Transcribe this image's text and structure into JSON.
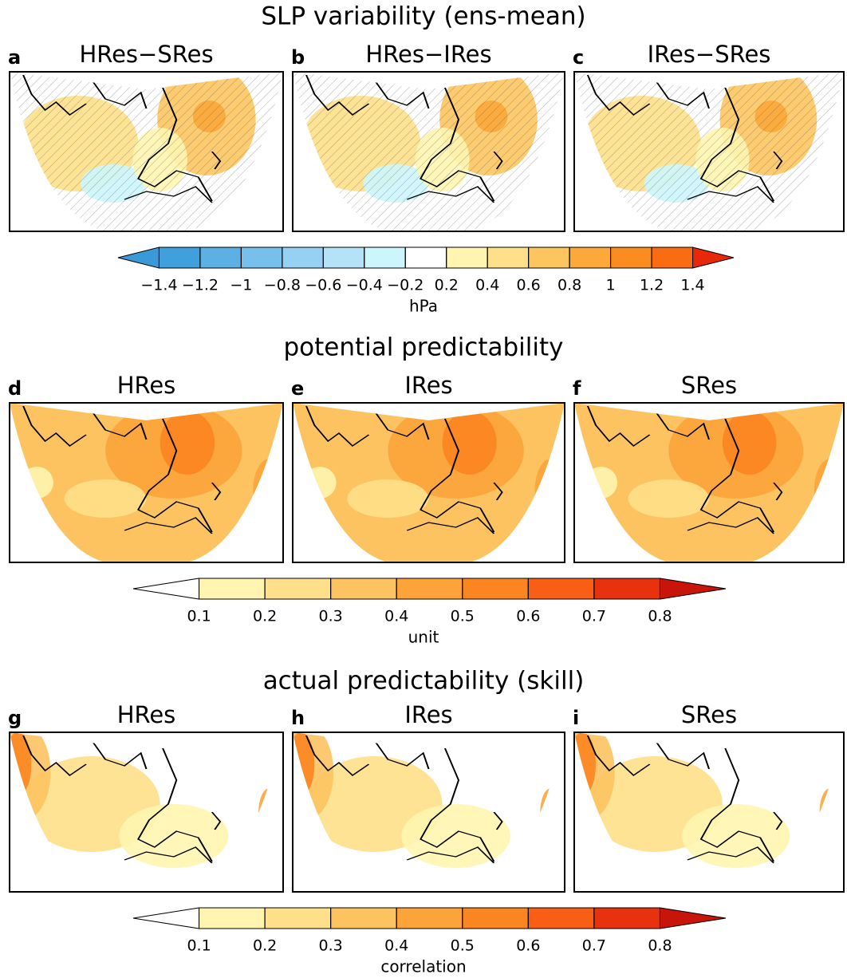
{
  "sections": [
    {
      "title": "SLP variability (ens-mean)",
      "panels": [
        {
          "letter": "a",
          "title": "HRes−SRes"
        },
        {
          "letter": "b",
          "title": "HRes−IRes"
        },
        {
          "letter": "c",
          "title": "IRes−SRes"
        }
      ],
      "colorbar": {
        "label": "hPa",
        "ticks": [
          {
            "value": -1.4,
            "label": "−1.4"
          },
          {
            "value": -1.2,
            "label": "−1.2"
          },
          {
            "value": -1,
            "label": "−1"
          },
          {
            "value": -0.8,
            "label": "−0.8"
          },
          {
            "value": -0.6,
            "label": "−0.6"
          },
          {
            "value": -0.4,
            "label": "−0.4"
          },
          {
            "value": -0.2,
            "label": "−0.2"
          },
          0.2,
          0.4,
          0.6,
          0.8,
          1,
          1.2,
          1.4
        ],
        "colors": [
          "#3a9ad8",
          "#3fa0dc",
          "#5cb0e4",
          "#78c0ec",
          "#96d0f2",
          "#b4e2f6",
          "#ccf6fc",
          "#ffffff",
          "#fff5b0",
          "#fee08a",
          "#fdc560",
          "#fca83a",
          "#fb8c20",
          "#f96c12",
          "#e8280a"
        ]
      }
    },
    {
      "title": "potential predictability",
      "panels": [
        {
          "letter": "d",
          "title": "HRes"
        },
        {
          "letter": "e",
          "title": "IRes"
        },
        {
          "letter": "f",
          "title": "SRes"
        }
      ],
      "colorbar": {
        "label": "unit",
        "ticks": [
          0.1,
          0.2,
          0.3,
          0.4,
          0.5,
          0.6,
          0.7,
          0.8
        ],
        "colors": [
          "#ffffff",
          "#fff5b0",
          "#fee08a",
          "#fdc360",
          "#fca43a",
          "#fb8520",
          "#f85e14",
          "#e8320e",
          "#c8140a"
        ]
      }
    },
    {
      "title": "actual predictability (skill)",
      "panels": [
        {
          "letter": "g",
          "title": "HRes"
        },
        {
          "letter": "h",
          "title": "IRes"
        },
        {
          "letter": "i",
          "title": "SRes"
        }
      ],
      "colorbar": {
        "label": "correlation",
        "ticks": [
          0.1,
          0.2,
          0.3,
          0.4,
          0.5,
          0.6,
          0.7,
          0.8
        ],
        "colors": [
          "#ffffff",
          "#fff5b0",
          "#fee08a",
          "#fdc360",
          "#fca43a",
          "#fb8520",
          "#f85e14",
          "#e8320e",
          "#c8140a"
        ]
      }
    }
  ]
}
